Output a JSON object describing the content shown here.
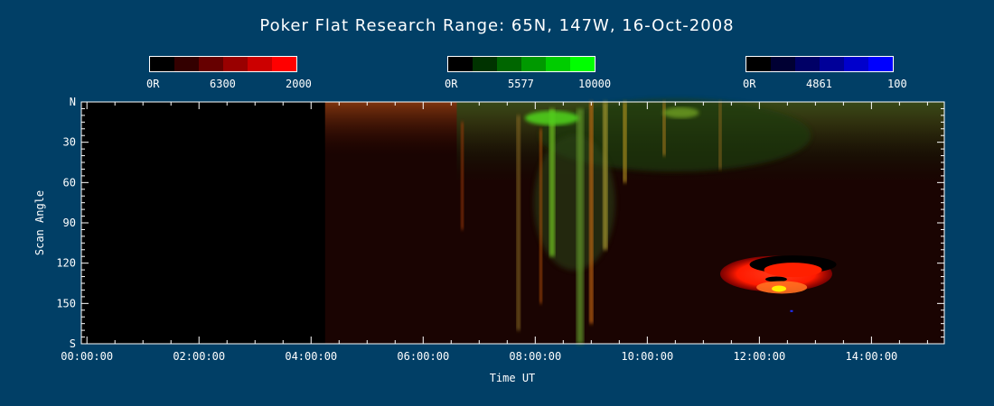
{
  "chart_data": {
    "type": "heatmap",
    "title": "Poker Flat Research Range: 65N, 147W, 16-Oct-2008",
    "xlabel": "Time UT",
    "ylabel": "Scan Angle",
    "x_ticks": [
      "00:00:00",
      "02:00:00",
      "04:00:00",
      "06:00:00",
      "08:00:00",
      "10:00:00",
      "12:00:00",
      "14:00:00"
    ],
    "x_tick_hours": [
      0,
      2,
      4,
      6,
      8,
      10,
      12,
      14
    ],
    "xlim_hours": [
      -0.1,
      15.3
    ],
    "y_ticks": [
      "N",
      "30",
      "60",
      "90",
      "120",
      "150",
      "S"
    ],
    "y_tick_values": [
      0,
      30,
      60,
      90,
      120,
      150,
      180
    ],
    "ylim": [
      0,
      180
    ],
    "data_start_hour": 4.25,
    "colorbars": [
      {
        "low_label": "0R",
        "wavelength": "6300",
        "high_label": "2000",
        "colors": [
          "#000000",
          "#330000",
          "#660000",
          "#990000",
          "#cc0000",
          "#ff0000"
        ]
      },
      {
        "low_label": "0R",
        "wavelength": "5577",
        "high_label": "10000",
        "colors": [
          "#000000",
          "#003300",
          "#006600",
          "#009900",
          "#00cc00",
          "#00ff00"
        ]
      },
      {
        "low_label": "0R",
        "wavelength": "4861",
        "high_label": "100",
        "colors": [
          "#000000",
          "#000033",
          "#000066",
          "#000099",
          "#0000cc",
          "#0000ff"
        ]
      }
    ]
  }
}
